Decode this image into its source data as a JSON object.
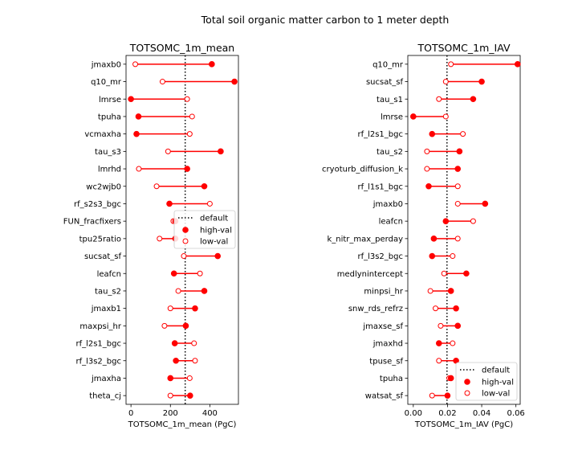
{
  "suptitle": "Total soil organic matter carbon to 1 meter depth",
  "legend": {
    "default": "default",
    "high": "high-val",
    "low": "low-val"
  },
  "colors": {
    "marker": "#ff0000",
    "default_line": "#000000"
  },
  "chart_data": [
    {
      "type": "dumbbell",
      "title": "TOTSOMC_1m_mean",
      "xlabel": "TOTSOMC_1m_mean (PgC)",
      "ylabel": "",
      "xlim": [
        -25,
        545
      ],
      "xticks": [
        0,
        200,
        400
      ],
      "default_value": 275,
      "legend_placement": "center-right",
      "grid": false,
      "categories": [
        "jmaxb0",
        "q10_mr",
        "lmrse",
        "tpuha",
        "vcmaxha",
        "tau_s3",
        "lmrhd",
        "wc2wjb0",
        "rf_s2s3_bgc",
        "FUN_fracfixers",
        "tpu25ratio",
        "sucsat_sf",
        "leafcn",
        "tau_s2",
        "jmaxb1",
        "maxpsi_hr",
        "rf_l2s1_bgc",
        "rf_l3s2_bgc",
        "jmaxha",
        "theta_cj"
      ],
      "series": [
        {
          "name": "high-val",
          "values": [
            410,
            525,
            0,
            38,
            28,
            455,
            285,
            372,
            195,
            225,
            225,
            440,
            218,
            372,
            325,
            278,
            222,
            228,
            200,
            300
          ]
        },
        {
          "name": "low-val",
          "values": [
            22,
            160,
            285,
            310,
            298,
            188,
            40,
            130,
            400,
            215,
            145,
            268,
            350,
            240,
            200,
            170,
            320,
            325,
            298,
            200
          ]
        }
      ]
    },
    {
      "type": "dumbbell",
      "title": "TOTSOMC_1m_IAV",
      "xlabel": "TOTSOMC_1m_IAV (PgC)",
      "ylabel": "",
      "xlim": [
        -0.0032,
        0.0625
      ],
      "xticks": [
        0.0,
        0.02,
        0.04,
        0.06
      ],
      "xticklabels": [
        "0.00",
        "0.02",
        "0.04",
        "0.06"
      ],
      "default_value": 0.0197,
      "legend_placement": "lower-right",
      "grid": false,
      "categories": [
        "q10_mr",
        "sucsat_sf",
        "tau_s1",
        "lmrse",
        "rf_l2s1_bgc",
        "tau_s2",
        "cryoturb_diffusion_k",
        "rf_l1s1_bgc",
        "jmaxb0",
        "leafcn",
        "k_nitr_max_perday",
        "rf_l3s2_bgc",
        "medlynintercept",
        "minpsi_hr",
        "snw_rds_refrz",
        "jmaxse_sf",
        "jmaxhd",
        "tpuse_sf",
        "tpuha",
        "watsat_sf"
      ],
      "series": [
        {
          "name": "high-val",
          "values": [
            0.061,
            0.04,
            0.035,
            0.0,
            0.011,
            0.027,
            0.026,
            0.009,
            0.042,
            0.019,
            0.012,
            0.011,
            0.031,
            0.022,
            0.025,
            0.026,
            0.015,
            0.025,
            0.022,
            0.02
          ]
        },
        {
          "name": "low-val",
          "values": [
            0.022,
            0.019,
            0.015,
            0.019,
            0.029,
            0.008,
            0.008,
            0.026,
            0.026,
            0.035,
            0.026,
            0.023,
            0.018,
            0.01,
            0.013,
            0.016,
            0.023,
            0.015,
            0.021,
            0.011
          ]
        }
      ]
    }
  ]
}
